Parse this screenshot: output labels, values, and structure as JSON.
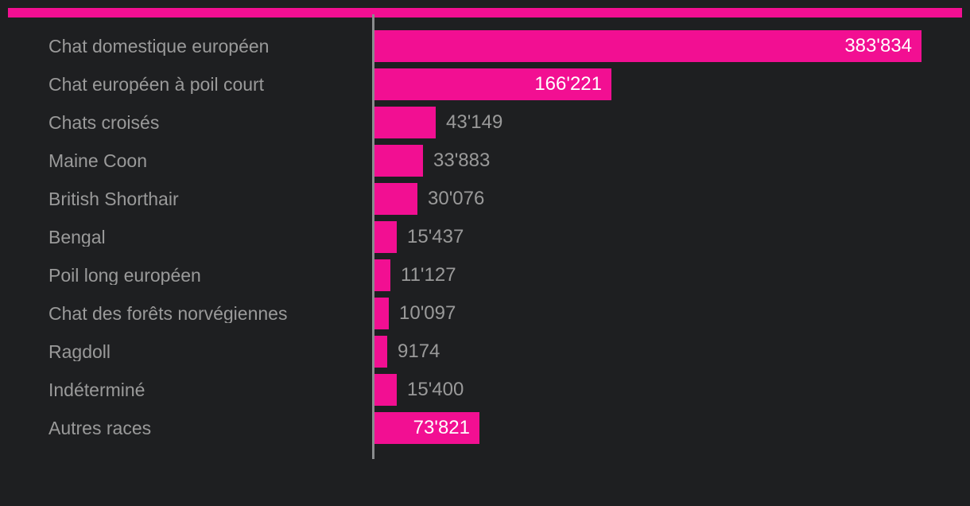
{
  "chart_data": {
    "type": "bar",
    "orientation": "horizontal",
    "title": "",
    "xlabel": "",
    "ylabel": "",
    "grid": false,
    "legend_position": "none",
    "xlim": [
      0,
      383834
    ],
    "categories": [
      "Chat domestique européen",
      "Chat européen à poil court",
      "Chats croisés",
      "Maine Coon",
      "British Shorthair",
      "Bengal",
      "Poil long européen",
      "Chat des forêts norvégiennes",
      "Ragdoll",
      "Indéterminé",
      "Autres races"
    ],
    "values": [
      383834,
      166221,
      43149,
      33883,
      30076,
      15437,
      11127,
      10097,
      9174,
      15400,
      73821
    ],
    "value_labels": [
      "383'834",
      "166'221",
      "43'149",
      "33'883",
      "30'076",
      "15'437",
      "11'127",
      "10'097",
      "9174",
      "15'400",
      "73'821"
    ],
    "value_label_placement": [
      "inside",
      "inside",
      "outside",
      "outside",
      "outside",
      "outside",
      "outside",
      "outside",
      "outside",
      "outside",
      "inside"
    ],
    "colors": {
      "bar": "#f20f92",
      "accent_bar": "#f20f92",
      "background": "#1e1f21",
      "category_label": "#9a9a9a",
      "value_inside": "#ffffff",
      "value_outside": "#9a9a9a",
      "axis_line": "#8a8c8e"
    }
  }
}
